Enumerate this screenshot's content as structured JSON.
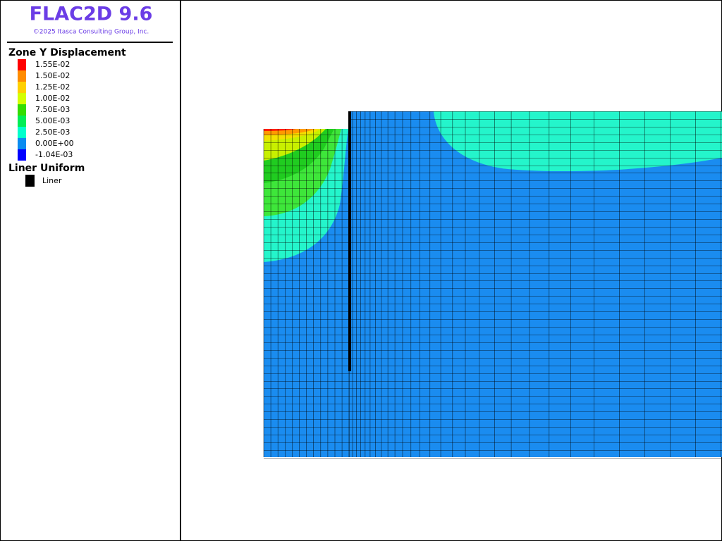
{
  "header": {
    "title": "FLAC2D 9.6",
    "copyright": "©2025 Itasca Consulting Group, Inc."
  },
  "legend": {
    "contour_title": "Zone Y Displacement",
    "contour_levels": [
      "1.55E-02",
      "1.50E-02",
      "1.25E-02",
      "1.00E-02",
      "7.50E-03",
      "5.00E-03",
      "2.50E-03",
      "0.00E+00",
      "-1.04E-03"
    ],
    "liner_title": "Liner Uniform",
    "liner_label": "Liner"
  }
}
